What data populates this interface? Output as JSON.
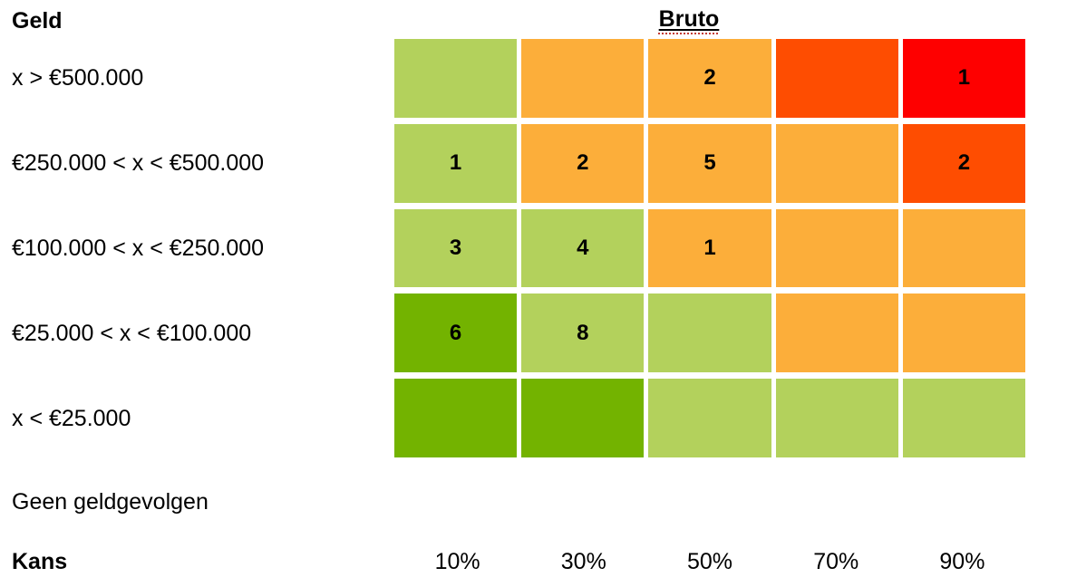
{
  "page": {
    "background": "#FFFFFF"
  },
  "chart_data": {
    "type": "heatmap",
    "title": "Bruto",
    "title_decoration": "black solid underline plus red spellcheck dotted squiggle",
    "spellcheck_underline_color": "#C43C35",
    "y_axis_label": "Geld",
    "x_axis_label": "Kans",
    "rows": [
      "x > €500.000",
      "€250.000 < x < €500.000",
      "€100.000 < x < €250.000",
      "€25.000 < x < €100.000",
      "x < €25.000"
    ],
    "no_consequence_label": "Geen geldgevolgen",
    "columns": [
      "10%",
      "30%",
      "50%",
      "70%",
      "90%"
    ],
    "cells": [
      [
        {
          "count": "",
          "level": "light-green"
        },
        {
          "count": "",
          "level": "orange"
        },
        {
          "count": "2",
          "level": "orange"
        },
        {
          "count": "",
          "level": "dark-orange"
        },
        {
          "count": "1",
          "level": "red"
        }
      ],
      [
        {
          "count": "1",
          "level": "light-green"
        },
        {
          "count": "2",
          "level": "orange"
        },
        {
          "count": "5",
          "level": "orange"
        },
        {
          "count": "",
          "level": "orange"
        },
        {
          "count": "2",
          "level": "dark-orange"
        }
      ],
      [
        {
          "count": "3",
          "level": "light-green"
        },
        {
          "count": "4",
          "level": "light-green"
        },
        {
          "count": "1",
          "level": "orange"
        },
        {
          "count": "",
          "level": "orange"
        },
        {
          "count": "",
          "level": "orange"
        }
      ],
      [
        {
          "count": "6",
          "level": "dark-green"
        },
        {
          "count": "8",
          "level": "light-green"
        },
        {
          "count": "",
          "level": "light-green"
        },
        {
          "count": "",
          "level": "orange"
        },
        {
          "count": "",
          "level": "orange"
        }
      ],
      [
        {
          "count": "",
          "level": "dark-green"
        },
        {
          "count": "",
          "level": "dark-green"
        },
        {
          "count": "",
          "level": "light-green"
        },
        {
          "count": "",
          "level": "light-green"
        },
        {
          "count": "",
          "level": "light-green"
        }
      ]
    ],
    "level_colors": {
      "light-green": "#B3D15C",
      "dark-green": "#73B300",
      "orange": "#FCAE3A",
      "dark-orange": "#FE4D01",
      "red": "#FE0000"
    },
    "gap_color": "#FFFFFF",
    "legend_position": "none"
  }
}
